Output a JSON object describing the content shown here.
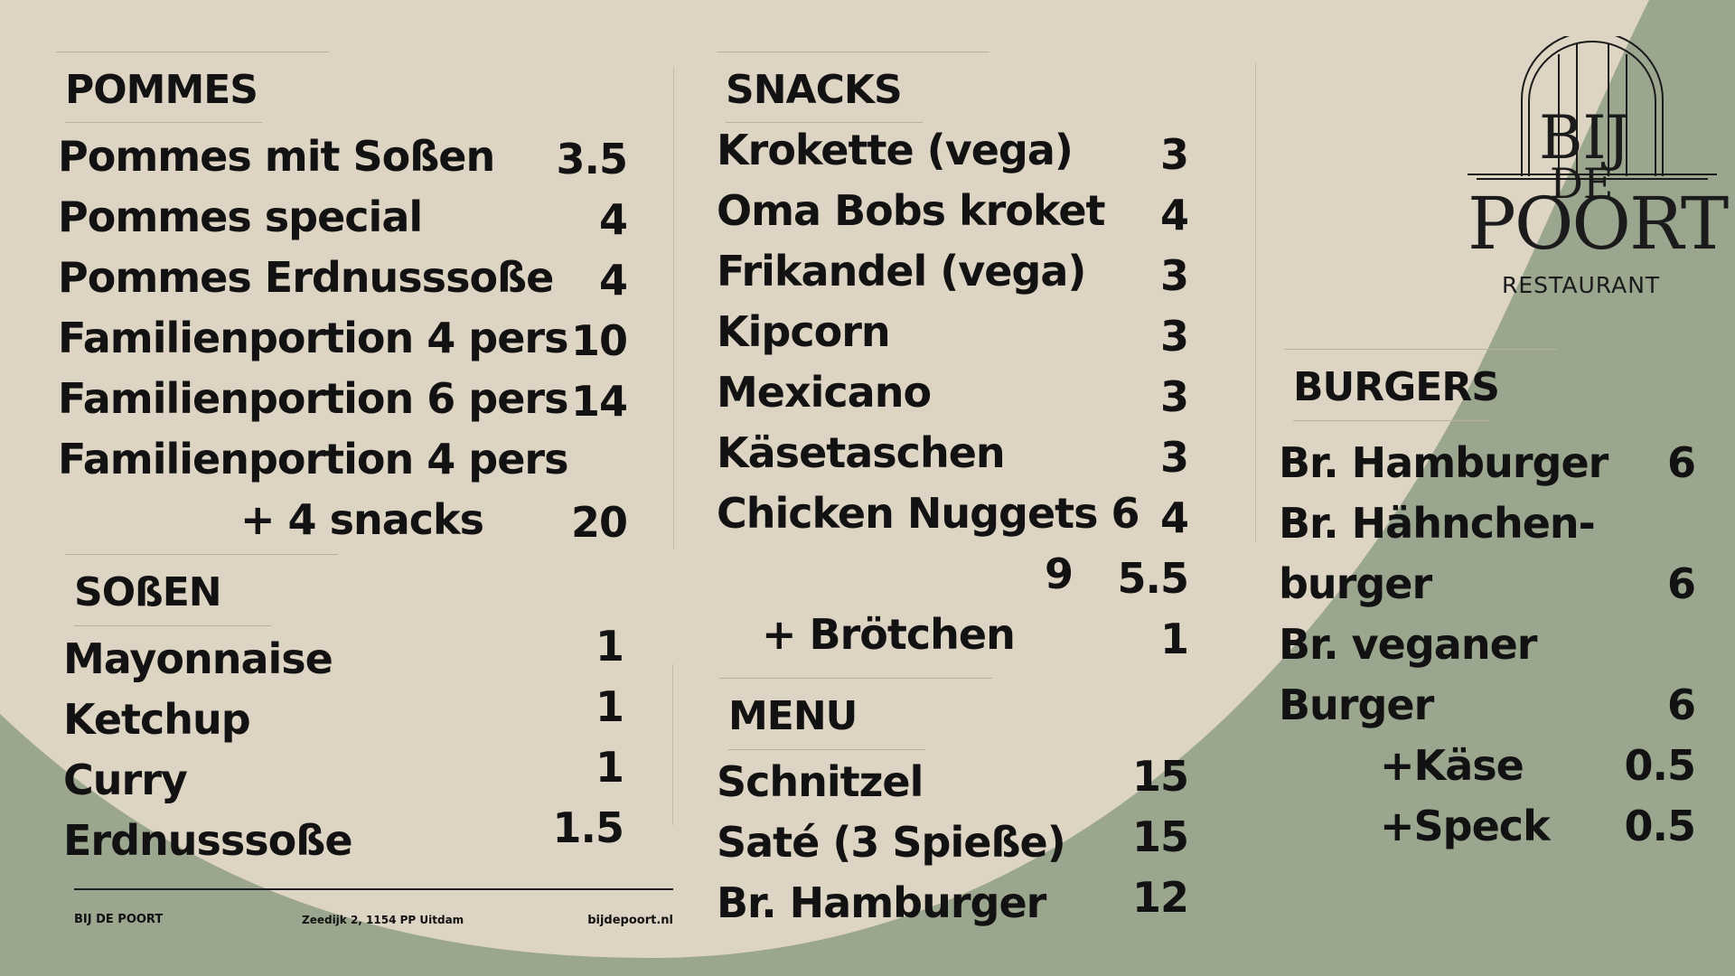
{
  "colors": {
    "background": "#ddd4c3",
    "accent_green": "#9ba68f",
    "text": "#121212"
  },
  "pommes": {
    "title": "POMMES",
    "items": [
      {
        "name": "Pommes mit Soßen",
        "price": "3.5"
      },
      {
        "name": "Pommes special",
        "price": "4"
      },
      {
        "name": "Pommes Erdnusssoße",
        "price": "4"
      },
      {
        "name": "Familienportion 4 pers",
        "price": "10"
      },
      {
        "name": "Familienportion 6 pers",
        "price": "14"
      }
    ],
    "combo_line1": "Familienportion 4 pers",
    "combo_line2": "+ 4 snacks",
    "combo_price": "20"
  },
  "sossen": {
    "title": "SOßEN",
    "items": [
      {
        "name": "Mayonnaise",
        "price": "1"
      },
      {
        "name": "Ketchup",
        "price": "1"
      },
      {
        "name": "Curry",
        "price": "1"
      },
      {
        "name": "Erdnusssoße",
        "price": "1.5"
      }
    ]
  },
  "snacks": {
    "title": "SNACKS",
    "items": [
      {
        "name": "Krokette (vega)",
        "price": "3"
      },
      {
        "name": "Oma Bobs kroket",
        "price": "4"
      },
      {
        "name": "Frikandel (vega)",
        "price": "3"
      },
      {
        "name": "Kipcorn",
        "price": "3"
      },
      {
        "name": "Mexicano",
        "price": "3"
      },
      {
        "name": "Käsetaschen",
        "price": "3"
      },
      {
        "name": "Chicken Nuggets 6",
        "price": "4"
      }
    ],
    "nuggets_9_label": "9",
    "nuggets_9_price": "5.5",
    "broetchen": "+ Brötchen",
    "broetchen_price": "1"
  },
  "menu": {
    "title": "MENU",
    "items": [
      {
        "name": "Schnitzel",
        "price": "15"
      },
      {
        "name": "Saté (3  Spieße)",
        "price": "15"
      },
      {
        "name": "Br. Hamburger",
        "price": "12"
      }
    ]
  },
  "burgers": {
    "title": "BURGERS",
    "hamburger": "Br. Hamburger",
    "hamburger_price": "6",
    "haehnchen_line1": "Br. Hähnchen-",
    "haehnchen_line2": "burger",
    "haehnchen_price": "6",
    "vegan_line1": "Br. veganer",
    "vegan_line2": "Burger",
    "vegan_price": "6",
    "kaese": "+Käse",
    "kaese_price": "0.5",
    "speck": "+Speck",
    "speck_price": "0.5"
  },
  "logo": {
    "line1": "BIJ",
    "line2": "DE",
    "line3": "POORT",
    "subtitle": "RESTAURANT"
  },
  "footer": {
    "name": "BIJ DE POORT",
    "address": "Zeedijk 2, 1154 PP Uitdam",
    "website": "bijdepoort.nl"
  }
}
